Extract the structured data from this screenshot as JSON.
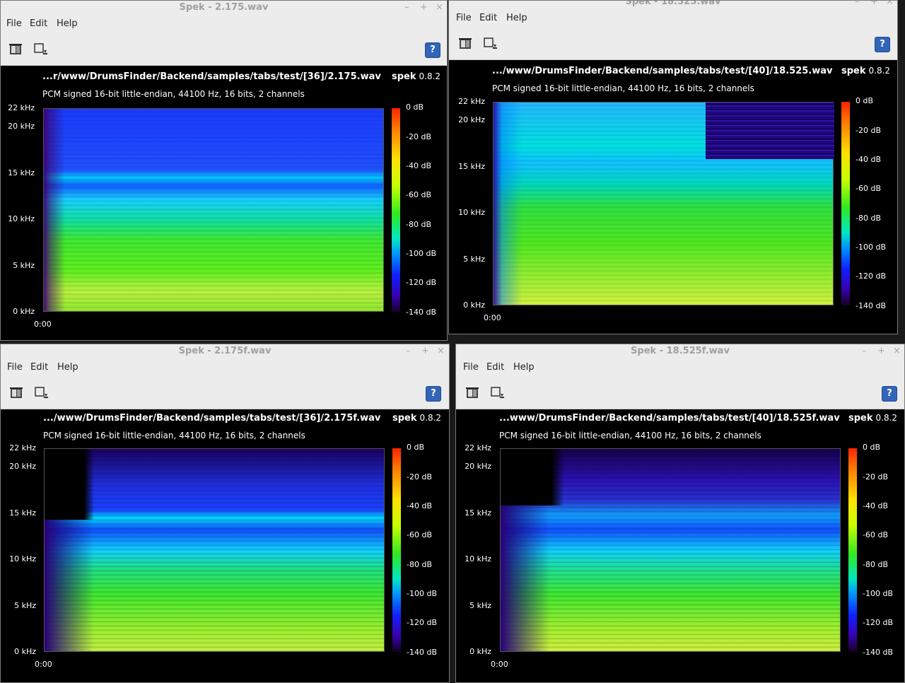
{
  "menu": {
    "file": "File",
    "edit": "Edit",
    "help": "Help"
  },
  "window_controls": {
    "minimize": "–",
    "maximize": "+",
    "close": "×"
  },
  "help_button": "?",
  "freq_labels": [
    "22 kHz",
    "20 kHz",
    "15 kHz",
    "10 kHz",
    "5 kHz",
    "0 kHz"
  ],
  "db_labels": [
    "0 dB",
    "-20 dB",
    "-40 dB",
    "-60 dB",
    "-80 dB",
    "-100 dB",
    "-120 dB",
    "-140 dB"
  ],
  "brand": {
    "name": "spek",
    "version": "0.8.2"
  },
  "audio_info": "PCM signed 16-bit little-endian, 44100 Hz, 16 bits, 2 channels",
  "time_start": "0:00",
  "windows": [
    {
      "title": "Spek - 2.175.wav",
      "path": "...r/www/DrumsFinder/Backend/samples/tabs/test/[36]/2.175.wav"
    },
    {
      "title": "Spek - 18.525.wav",
      "path": ".../www/DrumsFinder/Backend/samples/tabs/test/[40]/18.525.wav"
    },
    {
      "title": "Spek - 2.175f.wav",
      "path": ".../www/DrumsFinder/Backend/samples/tabs/test/[36]/2.175f.wav"
    },
    {
      "title": "Spek - 18.525f.wav",
      "path": "...www/DrumsFinder/Backend/samples/tabs/test/[40]/18.525f.wav"
    }
  ]
}
